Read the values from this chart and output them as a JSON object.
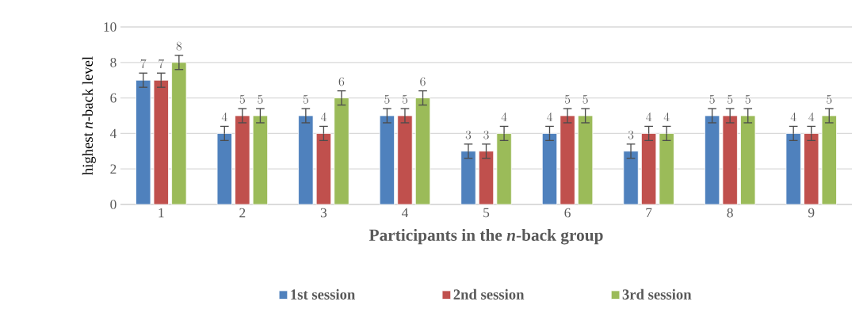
{
  "chart_data": {
    "type": "bar",
    "xlabel": "Participants in the *n*-back group",
    "ylabel": "highest *n*-back level",
    "categories": [
      "1",
      "2",
      "3",
      "4",
      "5",
      "6",
      "7",
      "8",
      "9"
    ],
    "series": [
      {
        "name": "1st session",
        "color": "#4f81bd",
        "values": [
          7,
          4,
          5,
          5,
          3,
          4,
          3,
          5,
          4
        ],
        "errors": [
          0.4,
          0.4,
          0.4,
          0.4,
          0.4,
          0.4,
          0.4,
          0.4,
          0.4
        ]
      },
      {
        "name": "2nd session",
        "color": "#c0504d",
        "values": [
          7,
          5,
          4,
          5,
          3,
          5,
          4,
          5,
          4
        ],
        "errors": [
          0.4,
          0.4,
          0.4,
          0.4,
          0.4,
          0.4,
          0.4,
          0.4,
          0.4
        ]
      },
      {
        "name": "3rd session",
        "color": "#9bbb59",
        "values": [
          8,
          5,
          6,
          6,
          4,
          5,
          4,
          5,
          5
        ],
        "errors": [
          0.4,
          0.4,
          0.4,
          0.4,
          0.4,
          0.4,
          0.4,
          0.4,
          0.4
        ]
      }
    ],
    "ylim": [
      0,
      10
    ],
    "yticks": [
      0,
      2,
      4,
      6,
      8,
      10
    ],
    "grid": "y",
    "legend": "bottom",
    "data_labels": true
  }
}
